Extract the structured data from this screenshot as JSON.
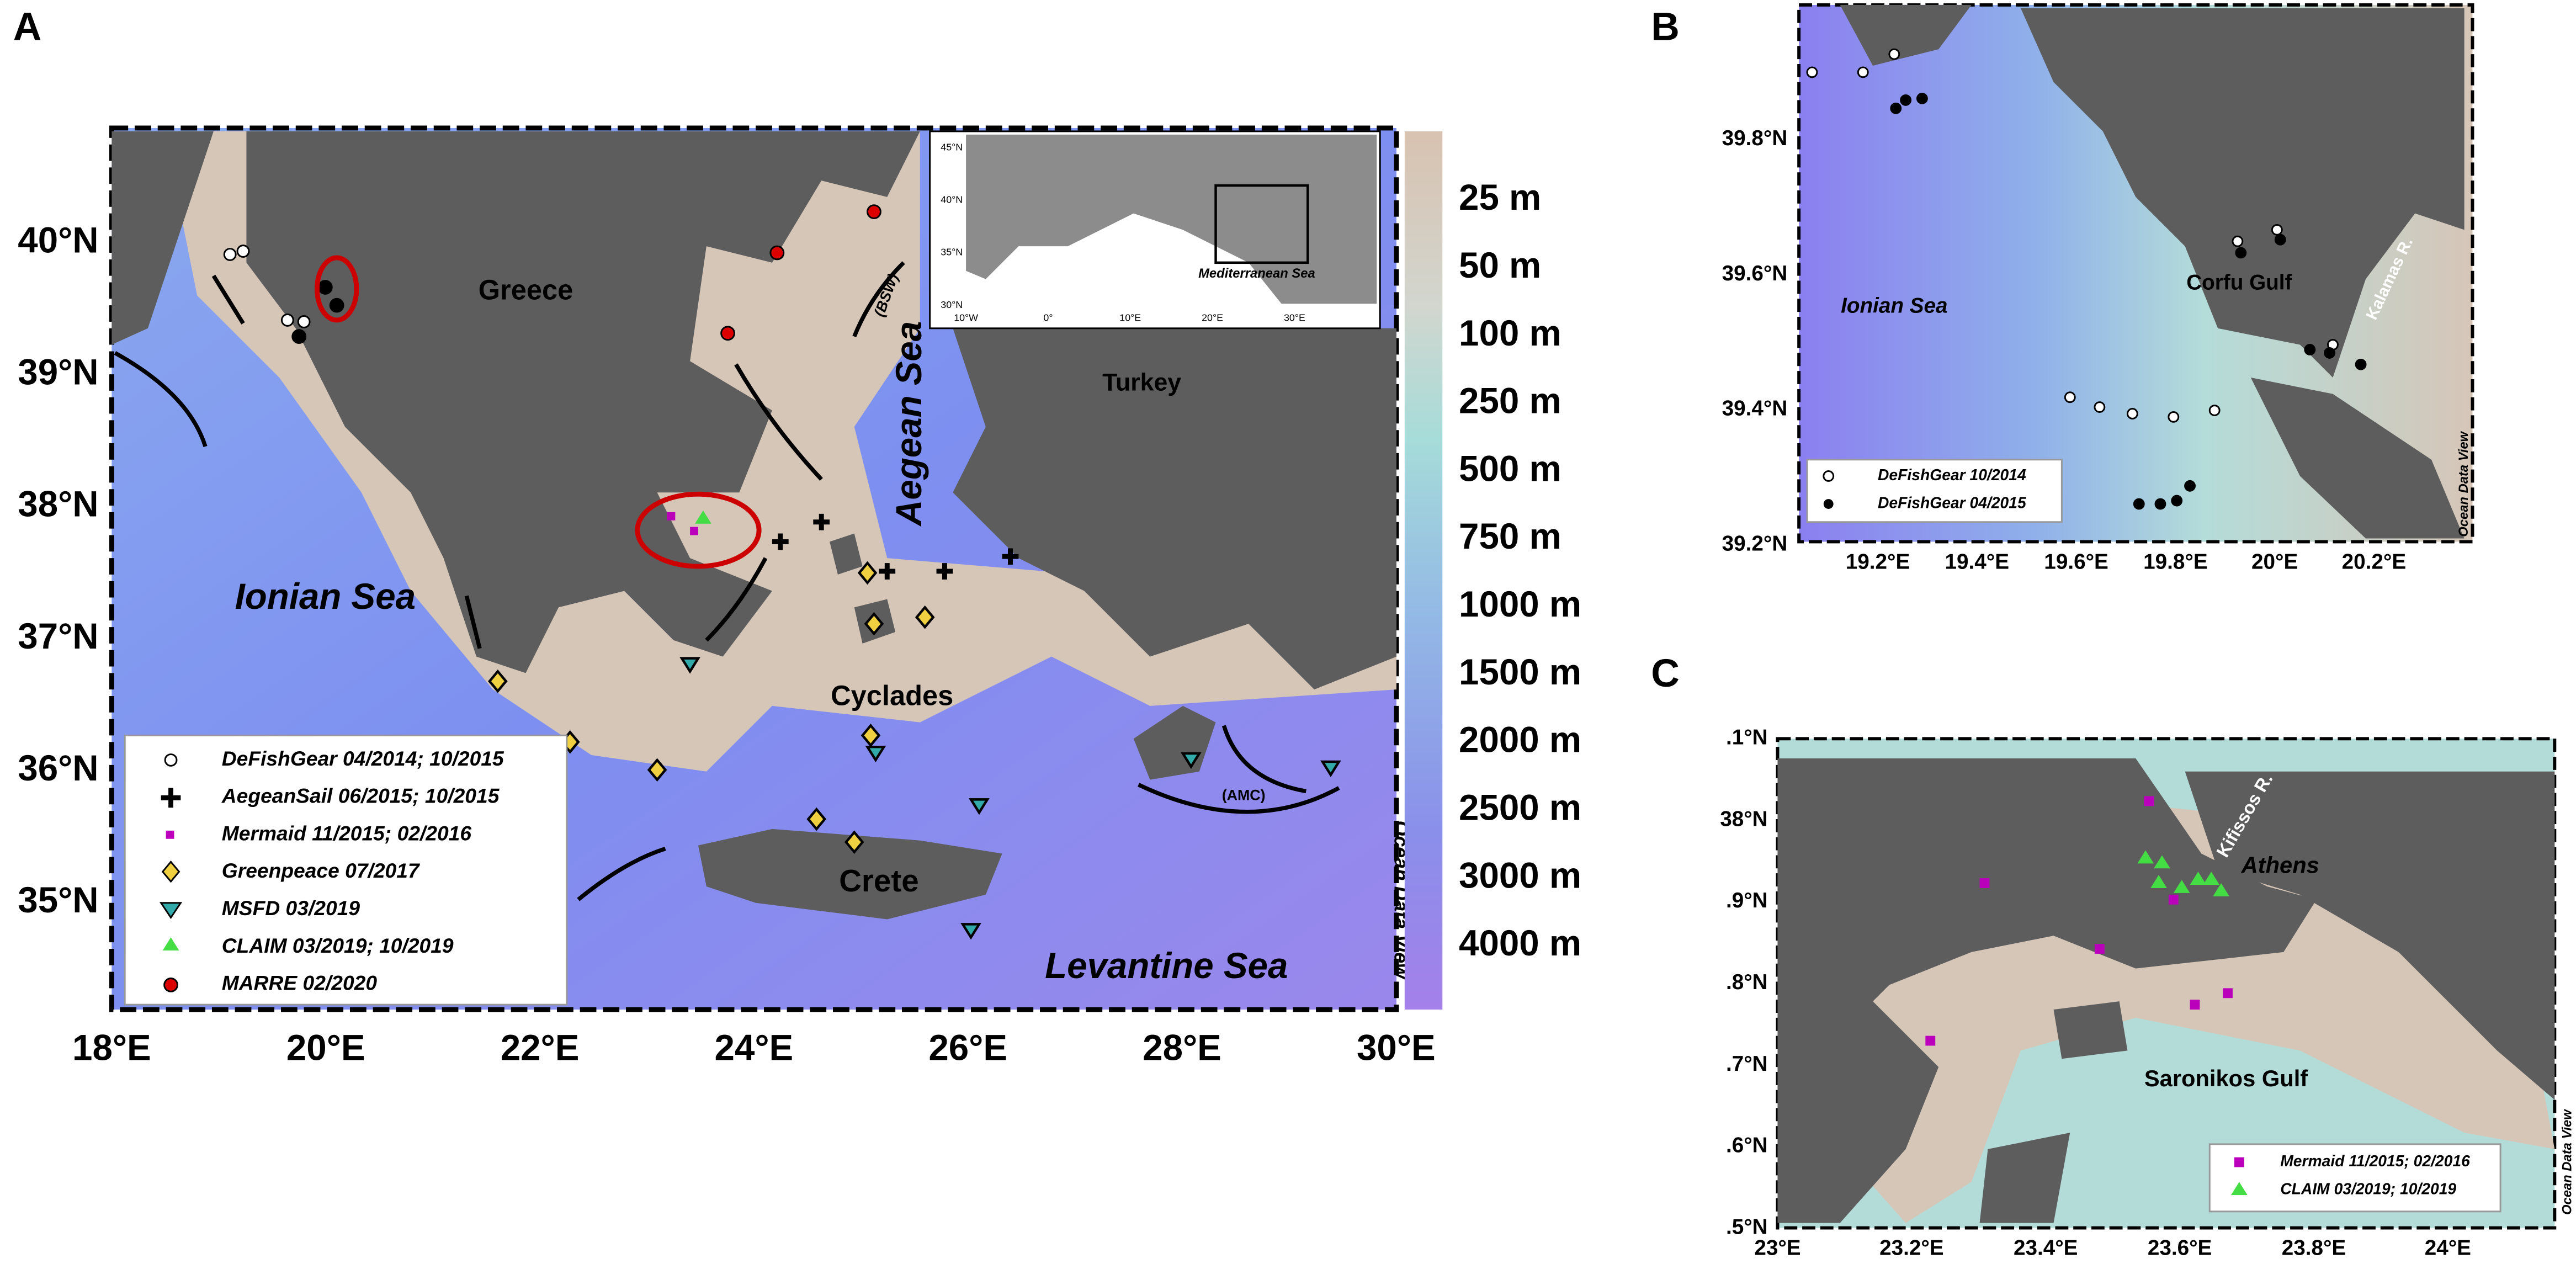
{
  "panel_a": {
    "label": "A",
    "places": [
      "Greece",
      "Turkey",
      "Aegean Sea",
      "Ionian Sea",
      "Cyclades",
      "Crete",
      "Levantine Sea",
      "(BSW)",
      "(AMC)"
    ],
    "x_ticks": [
      "18°E",
      "20°E",
      "22°E",
      "24°E",
      "26°E",
      "28°E",
      "30°E"
    ],
    "y_ticks": [
      "40°N",
      "39°N",
      "38°N",
      "37°N",
      "36°N",
      "35°N"
    ],
    "colorbar": [
      "25 m",
      "50 m",
      "100 m",
      "250 m",
      "500 m",
      "750 m",
      "1000 m",
      "1500 m",
      "2000 m",
      "2500 m",
      "3000 m",
      "4000 m"
    ],
    "watermark": "Ocean Data View",
    "inset": {
      "label": "Mediterranean Sea",
      "x_ticks": [
        "10°W",
        "0°",
        "10°E",
        "20°E",
        "30°E"
      ],
      "y_ticks": [
        "45°N",
        "40°N",
        "35°N",
        "30°N"
      ]
    },
    "legend": [
      "DeFishGear 04/2014; 10/2015",
      "AegeanSail 06/2015; 10/2015",
      "Mermaid 11/2015; 02/2016",
      "Greenpeace 07/2017",
      "MSFD 03/2019",
      "CLAIM 03/2019; 10/2019",
      "MARRE 02/2020"
    ]
  },
  "panel_b": {
    "label": "B",
    "places": [
      "Ionian Sea",
      "Corfu Gulf",
      "Kalamas R."
    ],
    "x_ticks": [
      "19.2°E",
      "19.4°E",
      "19.6°E",
      "19.8°E",
      "20°E",
      "20.2°E"
    ],
    "y_ticks": [
      "39.8°N",
      "39.6°N",
      "39.4°N",
      "39.2°N"
    ],
    "watermark": "Ocean Data View",
    "legend": [
      "DeFishGear 10/2014",
      "DeFishGear 04/2015"
    ]
  },
  "panel_c": {
    "label": "C",
    "places": [
      "Athens",
      "Kifissos R.",
      "Saronikos Gulf"
    ],
    "x_ticks": [
      "23°E",
      "23.2°E",
      "23.4°E",
      "23.6°E",
      "23.8°E",
      "24°E"
    ],
    "y_ticks": [
      ".1°N",
      "38°N",
      ".9°N",
      ".8°N",
      ".7°N",
      ".6°N",
      ".5°N"
    ],
    "watermark": "Ocean Data View",
    "legend": [
      "Mermaid 11/2015; 02/2016",
      "CLAIM 03/2019; 10/2019"
    ]
  }
}
